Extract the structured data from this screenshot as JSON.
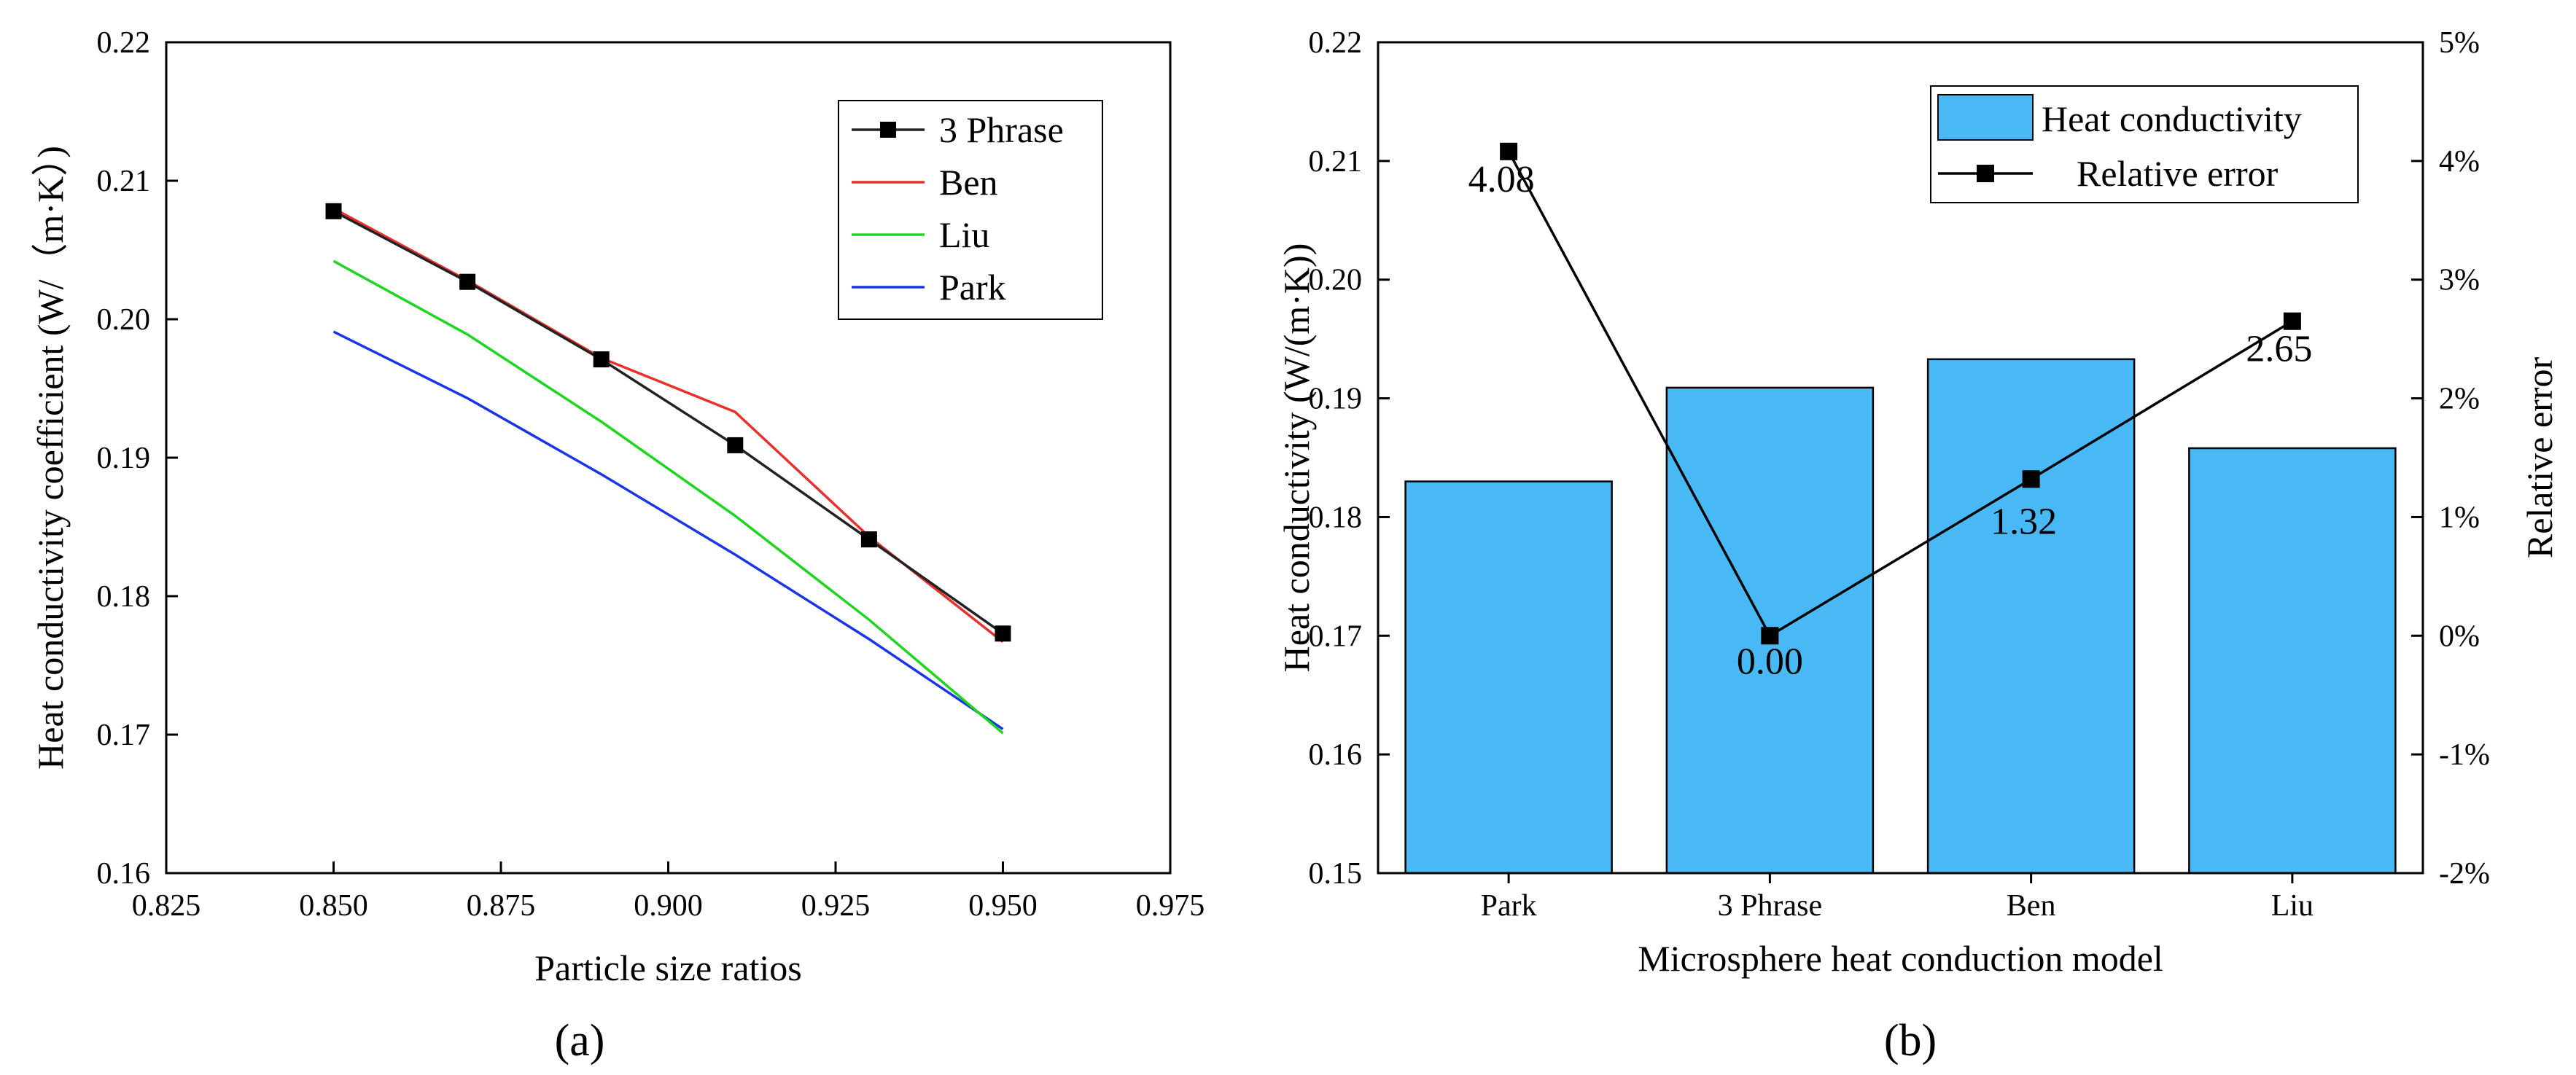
{
  "panel_a_label": "(a)",
  "panel_b_label": "(b)",
  "colors": {
    "three_phrase": "#222222",
    "ben": "#e8302c",
    "liu": "#1fd51f",
    "park": "#1a36e8",
    "bar_fill": "#48b9f5",
    "axis": "#000000"
  },
  "chart_data": [
    {
      "type": "line",
      "title": "",
      "xlabel": "Particle size ratios",
      "ylabel": "Heat conductivity coefficient (W/（m·K）)",
      "xlim": [
        0.825,
        0.975
      ],
      "ylim": [
        0.16,
        0.22
      ],
      "x_ticks": [
        0.825,
        0.85,
        0.875,
        0.9,
        0.925,
        0.95,
        0.975
      ],
      "x_tick_labels": [
        "0.825",
        "0.850",
        "0.875",
        "0.900",
        "0.925",
        "0.950",
        "0.975"
      ],
      "y_ticks": [
        0.16,
        0.17,
        0.18,
        0.19,
        0.2,
        0.21,
        0.22
      ],
      "y_tick_labels": [
        "0.16",
        "0.17",
        "0.18",
        "0.19",
        "0.20",
        "0.21",
        "0.22"
      ],
      "grid": false,
      "legend_position": "top-right",
      "x": [
        0.85,
        0.87,
        0.89,
        0.91,
        0.93,
        0.95
      ],
      "series": [
        {
          "name": "3 Phrase",
          "color": "#222222",
          "marker": "square",
          "values": [
            0.2078,
            0.2027,
            0.1971,
            0.1909,
            0.1841,
            0.1773
          ]
        },
        {
          "name": "Ben",
          "color": "#e8302c",
          "marker": "none",
          "values": [
            0.208,
            0.2028,
            0.1972,
            0.1933,
            0.1843,
            0.1767
          ]
        },
        {
          "name": "Liu",
          "color": "#1fd51f",
          "marker": "none",
          "values": [
            0.2042,
            0.1989,
            0.1926,
            0.1858,
            0.1783,
            0.1701
          ]
        },
        {
          "name": "Park",
          "color": "#1a36e8",
          "marker": "none",
          "values": [
            0.1991,
            0.1943,
            0.1888,
            0.183,
            0.1769,
            0.1704
          ]
        }
      ]
    },
    {
      "type": "bar",
      "title": "",
      "xlabel": "Microsphere heat conduction model",
      "ylabel": "Heat conductivity (W/(m·K))",
      "y2label": "Relative error",
      "categories": [
        "Park",
        "3 Phrase",
        "Ben",
        "Liu"
      ],
      "ylim": [
        0.15,
        0.22
      ],
      "y2lim": [
        -2,
        5
      ],
      "y_ticks": [
        0.15,
        0.16,
        0.17,
        0.18,
        0.19,
        0.2,
        0.21,
        0.22
      ],
      "y_tick_labels": [
        "0.15",
        "0.16",
        "0.17",
        "0.18",
        "0.19",
        "0.20",
        "0.21",
        "0.22"
      ],
      "y2_ticks": [
        -2,
        -1,
        0,
        1,
        2,
        3,
        4,
        5
      ],
      "y2_tick_labels": [
        "-2%",
        "-1%",
        "0%",
        "1%",
        "2%",
        "3%",
        "4%",
        "5%"
      ],
      "grid": false,
      "legend_position": "top-right",
      "series": [
        {
          "name": "Heat conductivity",
          "kind": "bar",
          "color": "#48b9f5",
          "values": [
            0.183,
            0.1909,
            0.1933,
            0.1858
          ]
        },
        {
          "name": "Relative error",
          "kind": "line",
          "axis": "right",
          "color": "#000000",
          "marker": "square",
          "values": [
            4.08,
            0.0,
            1.32,
            2.65
          ],
          "labels": [
            "4.08",
            "0.00",
            "1.32",
            "2.65"
          ]
        }
      ]
    }
  ]
}
